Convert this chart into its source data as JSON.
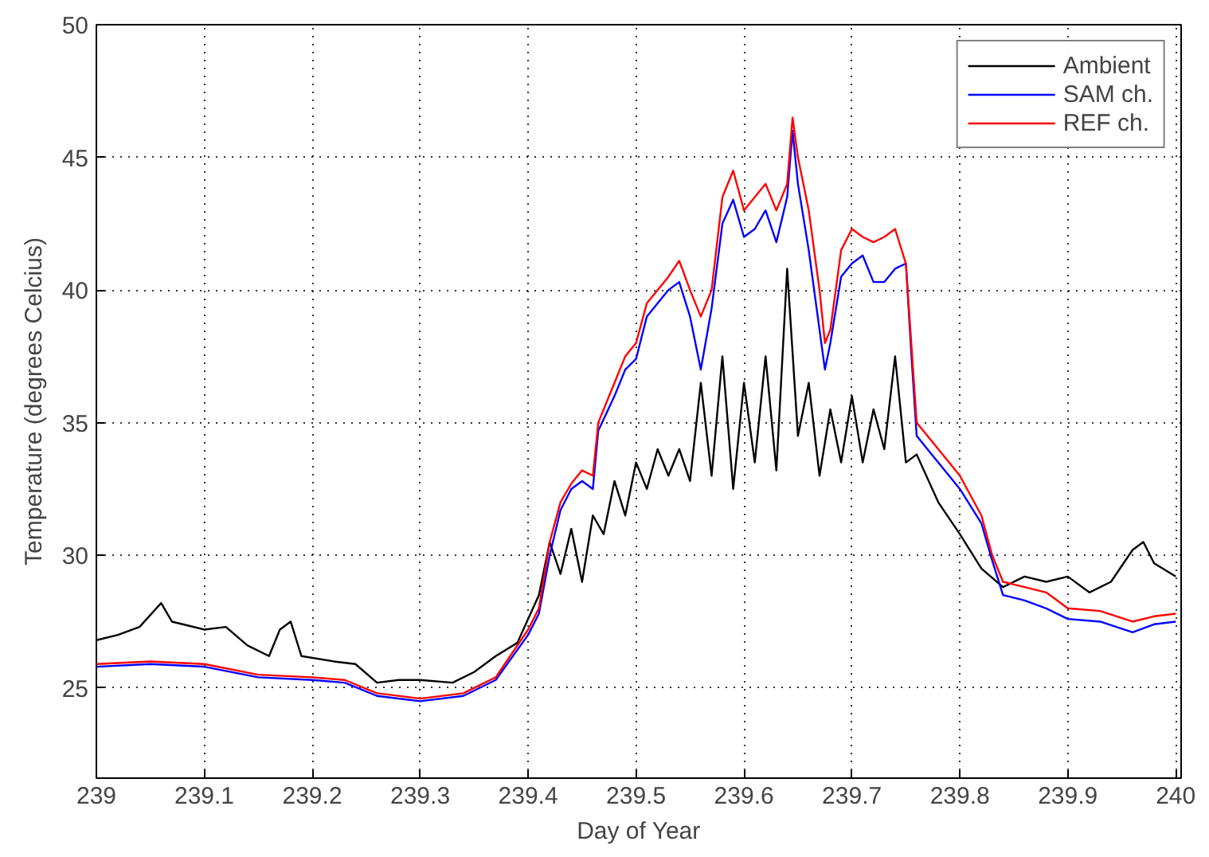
{
  "chart_data": {
    "type": "line",
    "xlabel": "Day of Year",
    "ylabel": "Temperature (degrees Celcius)",
    "xlim": [
      239,
      240.005
    ],
    "ylim": [
      21.6,
      50
    ],
    "xticks": [
      239,
      239.1,
      239.2,
      239.3,
      239.4,
      239.5,
      239.6,
      239.7,
      239.8,
      239.9,
      240
    ],
    "yticks": [
      25,
      30,
      35,
      40,
      45,
      50
    ],
    "grid": true,
    "legend": "top right",
    "line_style": "solid",
    "series": [
      {
        "name": "Ambient",
        "color": "#000000",
        "x": [
          239.0,
          239.02,
          239.04,
          239.06,
          239.07,
          239.1,
          239.12,
          239.14,
          239.16,
          239.17,
          239.18,
          239.19,
          239.22,
          239.24,
          239.26,
          239.28,
          239.3,
          239.33,
          239.35,
          239.37,
          239.39,
          239.41,
          239.42,
          239.43,
          239.44,
          239.45,
          239.46,
          239.47,
          239.48,
          239.49,
          239.5,
          239.51,
          239.52,
          239.53,
          239.54,
          239.55,
          239.56,
          239.57,
          239.58,
          239.59,
          239.6,
          239.61,
          239.62,
          239.63,
          239.64,
          239.65,
          239.66,
          239.67,
          239.68,
          239.69,
          239.7,
          239.71,
          239.72,
          239.73,
          239.74,
          239.75,
          239.76,
          239.78,
          239.8,
          239.82,
          239.84,
          239.86,
          239.88,
          239.9,
          239.92,
          239.94,
          239.96,
          239.97,
          239.98,
          240.0
        ],
        "values": [
          26.8,
          27.0,
          27.3,
          28.2,
          27.5,
          27.2,
          27.3,
          26.6,
          26.2,
          27.2,
          27.5,
          26.2,
          26.0,
          25.9,
          25.2,
          25.3,
          25.3,
          25.2,
          25.6,
          26.2,
          26.7,
          28.5,
          30.5,
          29.3,
          31.0,
          29.0,
          31.5,
          30.8,
          32.8,
          31.5,
          33.5,
          32.5,
          34.0,
          33.0,
          34.0,
          32.8,
          36.5,
          33.0,
          37.5,
          32.5,
          36.5,
          33.5,
          37.5,
          33.2,
          40.8,
          34.5,
          36.5,
          33.0,
          35.5,
          33.5,
          36.0,
          33.5,
          35.5,
          34.0,
          37.5,
          33.5,
          33.8,
          32.0,
          30.8,
          29.5,
          28.8,
          29.2,
          29.0,
          29.2,
          28.6,
          29.0,
          30.2,
          30.5,
          29.7,
          29.2
        ]
      },
      {
        "name": "SAM ch.",
        "color": "#0000ff",
        "x": [
          239.0,
          239.05,
          239.1,
          239.15,
          239.2,
          239.23,
          239.26,
          239.3,
          239.34,
          239.37,
          239.4,
          239.41,
          239.42,
          239.43,
          239.44,
          239.45,
          239.46,
          239.465,
          239.48,
          239.49,
          239.5,
          239.51,
          239.53,
          239.54,
          239.55,
          239.56,
          239.57,
          239.58,
          239.59,
          239.6,
          239.61,
          239.62,
          239.63,
          239.64,
          239.645,
          239.65,
          239.66,
          239.67,
          239.675,
          239.68,
          239.69,
          239.7,
          239.71,
          239.72,
          239.73,
          239.74,
          239.75,
          239.755,
          239.76,
          239.77,
          239.79,
          239.8,
          239.82,
          239.83,
          239.84,
          239.86,
          239.88,
          239.9,
          239.93,
          239.96,
          239.98,
          240.0
        ],
        "values": [
          25.8,
          25.9,
          25.8,
          25.4,
          25.3,
          25.2,
          24.7,
          24.5,
          24.7,
          25.3,
          27.0,
          27.8,
          30.0,
          31.7,
          32.5,
          32.8,
          32.5,
          34.7,
          36.0,
          37.0,
          37.4,
          39.0,
          40.0,
          40.3,
          39.0,
          37.0,
          39.3,
          42.5,
          43.4,
          42.0,
          42.3,
          43.0,
          41.8,
          43.5,
          46.0,
          44.0,
          41.5,
          38.5,
          37.0,
          38.0,
          40.5,
          41.0,
          41.3,
          40.3,
          40.3,
          40.8,
          41.0,
          37.6,
          34.5,
          34.0,
          33.0,
          32.5,
          31.2,
          29.8,
          28.5,
          28.3,
          28.0,
          27.6,
          27.5,
          27.1,
          27.4,
          27.5
        ]
      },
      {
        "name": "REF ch.",
        "color": "#ff0000",
        "x": [
          239.0,
          239.05,
          239.1,
          239.15,
          239.2,
          239.23,
          239.26,
          239.3,
          239.34,
          239.37,
          239.4,
          239.41,
          239.42,
          239.43,
          239.44,
          239.45,
          239.46,
          239.465,
          239.48,
          239.49,
          239.5,
          239.51,
          239.53,
          239.54,
          239.55,
          239.56,
          239.57,
          239.58,
          239.59,
          239.6,
          239.61,
          239.62,
          239.63,
          239.64,
          239.645,
          239.65,
          239.66,
          239.67,
          239.675,
          239.68,
          239.69,
          239.7,
          239.71,
          239.72,
          239.73,
          239.74,
          239.75,
          239.755,
          239.76,
          239.77,
          239.79,
          239.8,
          239.82,
          239.83,
          239.84,
          239.86,
          239.88,
          239.9,
          239.93,
          239.96,
          239.98,
          240.0
        ],
        "values": [
          25.9,
          26.0,
          25.9,
          25.5,
          25.4,
          25.3,
          24.8,
          24.6,
          24.8,
          25.4,
          27.2,
          28.0,
          30.5,
          32.0,
          32.7,
          33.2,
          33.0,
          35.0,
          36.5,
          37.5,
          38.0,
          39.5,
          40.5,
          41.1,
          40.0,
          39.0,
          40.0,
          43.5,
          44.5,
          43.0,
          43.5,
          44.0,
          43.0,
          44.0,
          46.5,
          45.0,
          43.0,
          40.0,
          38.0,
          38.5,
          41.5,
          42.3,
          42.0,
          41.8,
          42.0,
          42.3,
          41.0,
          38.0,
          35.0,
          34.5,
          33.5,
          33.0,
          31.5,
          30.0,
          29.0,
          28.8,
          28.6,
          28.0,
          27.9,
          27.5,
          27.7,
          27.8
        ]
      }
    ]
  }
}
